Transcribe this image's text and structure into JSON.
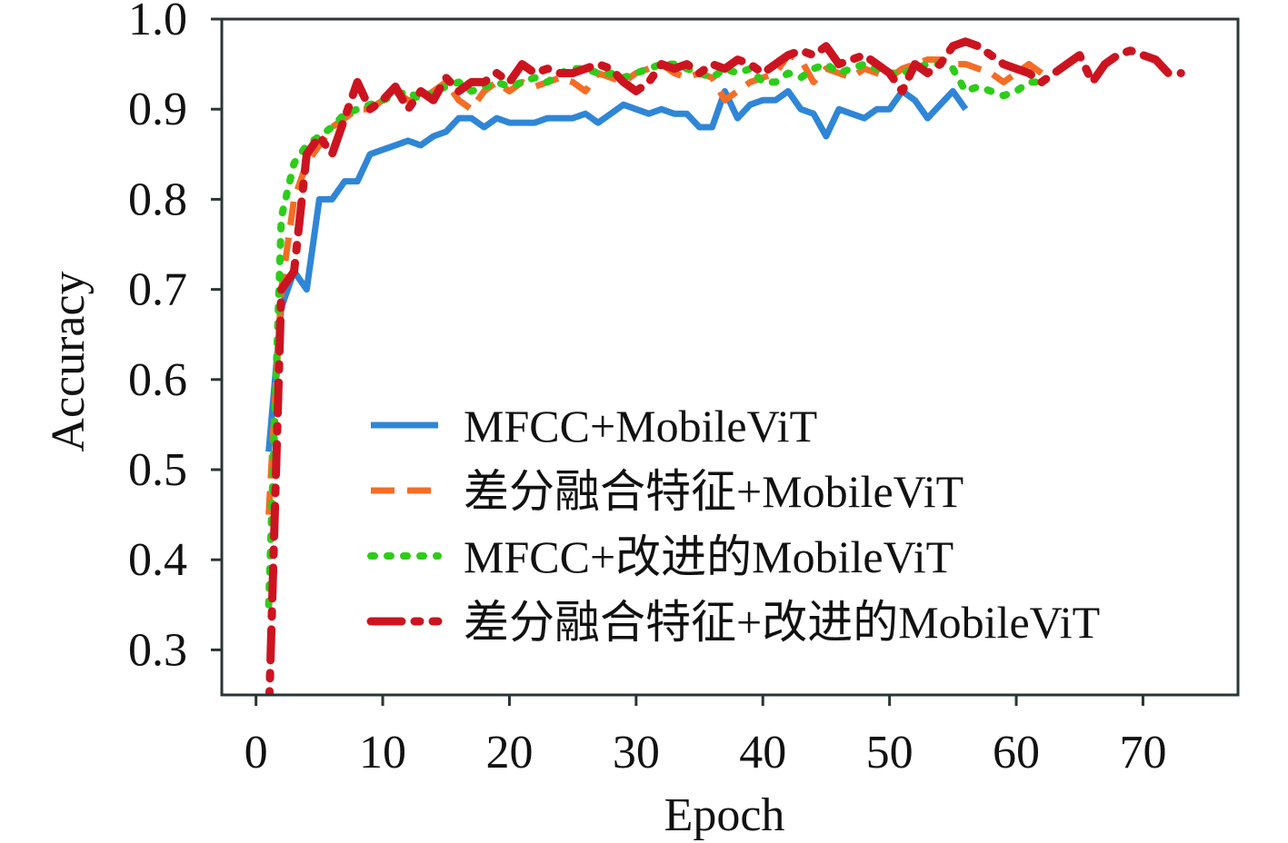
{
  "chart_data": {
    "type": "line",
    "title": "",
    "xlabel": "Epoch",
    "ylabel": "Accuracy",
    "xlim": [
      -2.7,
      77.5
    ],
    "ylim": [
      0.25,
      1.0
    ],
    "xticks": [
      0,
      10,
      20,
      30,
      40,
      50,
      60,
      70
    ],
    "yticks": [
      0.3,
      0.4,
      0.5,
      0.6,
      0.7,
      0.8,
      0.9,
      1.0
    ],
    "ytick_labels": [
      "0.3",
      "0.4",
      "0.5",
      "0.6",
      "0.7",
      "0.8",
      "0.9",
      "1.0"
    ],
    "grid": false,
    "legend_position": "center-right",
    "series": [
      {
        "name": "MFCC+MobileViT",
        "color": "#2f86d6",
        "dash": "solid",
        "values": [
          0.52,
          0.68,
          0.72,
          0.7,
          0.8,
          0.8,
          0.82,
          0.82,
          0.85,
          0.855,
          0.86,
          0.865,
          0.86,
          0.87,
          0.875,
          0.89,
          0.89,
          0.88,
          0.89,
          0.885,
          0.885,
          0.885,
          0.89,
          0.89,
          0.89,
          0.895,
          0.885,
          0.895,
          0.905,
          0.9,
          0.895,
          0.9,
          0.895,
          0.895,
          0.88,
          0.88,
          0.92,
          0.89,
          0.905,
          0.91,
          0.91,
          0.92,
          0.9,
          0.895,
          0.87,
          0.9,
          0.895,
          0.89,
          0.9,
          0.9,
          0.92,
          0.91,
          0.89,
          0.905,
          0.92,
          0.9
        ]
      },
      {
        "name": "差分融合特征+MobileViT",
        "color": "#f46d25",
        "dash": "dashed",
        "values": [
          0.45,
          0.7,
          0.8,
          0.84,
          0.86,
          0.88,
          0.89,
          0.9,
          0.9,
          0.91,
          0.92,
          0.91,
          0.91,
          0.92,
          0.93,
          0.91,
          0.9,
          0.92,
          0.93,
          0.92,
          0.93,
          0.925,
          0.93,
          0.935,
          0.93,
          0.92,
          0.94,
          0.935,
          0.93,
          0.94,
          0.945,
          0.95,
          0.94,
          0.935,
          0.94,
          0.935,
          0.91,
          0.92,
          0.93,
          0.935,
          0.94,
          0.96,
          0.955,
          0.93,
          0.945,
          0.94,
          0.935,
          0.945,
          0.94,
          0.935,
          0.945,
          0.95,
          0.955,
          0.955,
          0.95,
          0.95,
          0.945,
          0.94,
          0.93,
          0.94,
          0.95,
          0.94
        ]
      },
      {
        "name": "MFCC+改进的MobileViT",
        "color": "#2ecc1a",
        "dash": "dotted",
        "values": [
          0.35,
          0.78,
          0.84,
          0.86,
          0.87,
          0.88,
          0.895,
          0.9,
          0.905,
          0.91,
          0.915,
          0.92,
          0.91,
          0.92,
          0.925,
          0.93,
          0.92,
          0.925,
          0.93,
          0.925,
          0.93,
          0.935,
          0.93,
          0.94,
          0.945,
          0.945,
          0.94,
          0.94,
          0.935,
          0.94,
          0.945,
          0.95,
          0.95,
          0.945,
          0.94,
          0.935,
          0.945,
          0.94,
          0.945,
          0.93,
          0.93,
          0.94,
          0.935,
          0.945,
          0.95,
          0.94,
          0.945,
          0.95,
          0.945,
          0.94,
          0.94,
          0.945,
          0.95,
          0.95,
          0.945,
          0.92,
          0.925,
          0.92,
          0.915,
          0.92,
          0.93,
          0.93
        ]
      },
      {
        "name": "差分融合特征+改进的MobileViT",
        "color": "#cc1420",
        "dash": "dashdot",
        "values": [
          0.22,
          0.7,
          0.72,
          0.85,
          0.87,
          0.85,
          0.89,
          0.93,
          0.9,
          0.91,
          0.925,
          0.9,
          0.92,
          0.91,
          0.935,
          0.92,
          0.93,
          0.93,
          0.94,
          0.93,
          0.95,
          0.94,
          0.945,
          0.94,
          0.94,
          0.945,
          0.95,
          0.945,
          0.93,
          0.92,
          0.93,
          0.95,
          0.945,
          0.95,
          0.94,
          0.95,
          0.945,
          0.955,
          0.95,
          0.94,
          0.95,
          0.96,
          0.965,
          0.96,
          0.97,
          0.95,
          0.955,
          0.96,
          0.95,
          0.94,
          0.92,
          0.95,
          0.94,
          0.95,
          0.97,
          0.975,
          0.97,
          0.96,
          0.95,
          0.945,
          0.94,
          0.93,
          0.94,
          0.95,
          0.96,
          0.93,
          0.95,
          0.96,
          0.965,
          0.96,
          0.955,
          0.94,
          0.94
        ]
      }
    ]
  }
}
